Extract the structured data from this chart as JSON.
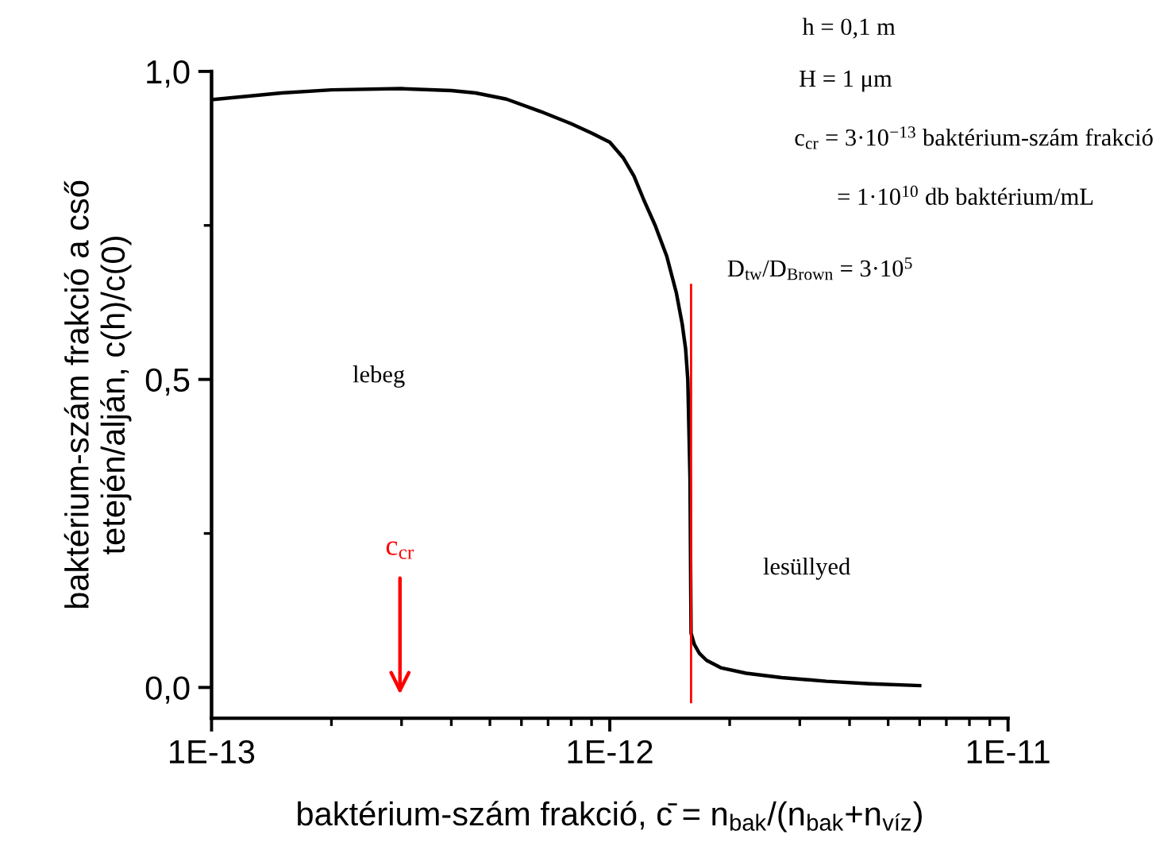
{
  "chart_data": {
    "type": "line",
    "xlabel": "baktérium-szám frakció, c̄ = n$_{bak}$/(n$_{bak}$+n$_{víz}$)",
    "ylabel": "baktérium-szám frakció a cső\ntetején/alján, c(h)/c(0)",
    "series": [
      {
        "color": "#000000",
        "x": [
          1e-13,
          1.5e-13,
          2e-13,
          3e-13,
          4e-13,
          4.6e-13,
          5.5e-13,
          6.7e-13,
          8e-13,
          9e-13,
          1e-12,
          1.08e-12,
          1.15e-12,
          1.22e-12,
          1.3e-12,
          1.39e-12,
          1.47e-12,
          1.52e-12,
          1.55e-12,
          1.57e-12,
          1.59e-12,
          1.6e-12,
          1.63e-12,
          1.68e-12,
          1.75e-12,
          1.9e-12,
          2.2e-12,
          2.7e-12,
          3.5e-12,
          4.5e-12,
          6e-12
        ],
        "values": [
          0.954,
          0.965,
          0.97,
          0.972,
          0.969,
          0.965,
          0.955,
          0.935,
          0.915,
          0.9,
          0.885,
          0.86,
          0.83,
          0.79,
          0.75,
          0.7,
          0.64,
          0.59,
          0.55,
          0.5,
          0.34,
          0.088,
          0.07,
          0.055,
          0.044,
          0.032,
          0.023,
          0.016,
          0.01,
          0.006,
          0.003
        ]
      }
    ],
    "xlim": [
      1e-13,
      1e-11
    ],
    "ylim": [
      -0.05,
      1.0
    ],
    "log": "x",
    "xticks": [
      {
        "value": 1e-13,
        "label": "1E-13"
      },
      {
        "value": 2e-13,
        "label": null
      },
      {
        "value": 3e-13,
        "label": null
      },
      {
        "value": 4e-13,
        "label": null
      },
      {
        "value": 5e-13,
        "label": null
      },
      {
        "value": 6e-13,
        "label": null
      },
      {
        "value": 7e-13,
        "label": null
      },
      {
        "value": 8e-13,
        "label": null
      },
      {
        "value": 9e-13,
        "label": null
      },
      {
        "value": 1e-12,
        "label": "1E-12"
      },
      {
        "value": 2e-12,
        "label": null
      },
      {
        "value": 3e-12,
        "label": null
      },
      {
        "value": 4e-12,
        "label": null
      },
      {
        "value": 5e-12,
        "label": null
      },
      {
        "value": 6e-12,
        "label": null
      },
      {
        "value": 7e-12,
        "label": null
      },
      {
        "value": 8e-12,
        "label": null
      },
      {
        "value": 9e-12,
        "label": null
      },
      {
        "value": 1e-11,
        "label": "1E-11"
      }
    ],
    "yticks": [
      {
        "value": 0.0,
        "label": "0,0"
      },
      {
        "value": 0.25,
        "label": null
      },
      {
        "value": 0.5,
        "label": "0,5"
      },
      {
        "value": 0.75,
        "label": null
      },
      {
        "value": 1.0,
        "label": "1,0"
      }
    ],
    "ref_lines": [
      {
        "axis": "x",
        "value": 1.6e-12,
        "color": "#ff0000"
      }
    ],
    "annotations": [
      "lebeg",
      "lesüllyed",
      "h = 0,1 m",
      "H = 1 μm",
      "c$_{cr}$ = 3·10$^{−13}$ baktérium-szám frakció",
      "= 1·10$^{10}$ db baktérium/mL",
      "D$_{tw}$/D$_{Brown}$ = 3·10$^{5}$",
      "c$_{cr}$"
    ],
    "marker": "none",
    "line_style": "solid",
    "grid": false,
    "legend": false
  }
}
